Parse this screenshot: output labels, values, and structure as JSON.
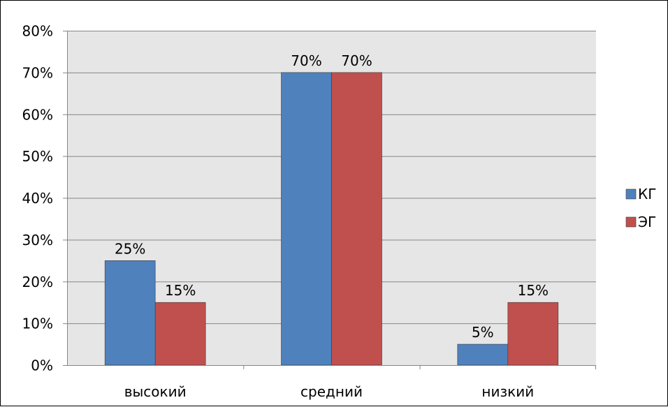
{
  "chart_data": {
    "type": "bar",
    "title": "",
    "xlabel": "",
    "ylabel": "",
    "categories": [
      "высокий",
      "средний",
      "низкий"
    ],
    "series": [
      {
        "name": "КГ",
        "values": [
          25,
          70,
          5
        ],
        "color": "#4F81BD"
      },
      {
        "name": "ЭГ",
        "values": [
          15,
          70,
          15
        ],
        "color": "#C0504D"
      }
    ],
    "ylim": [
      0,
      80
    ],
    "yticks": [
      0,
      10,
      20,
      30,
      40,
      50,
      60,
      70,
      80
    ],
    "y_tick_format": "percent",
    "data_labels": true,
    "grid": true,
    "legend_position": "right",
    "plot_background": "#E6E6E6",
    "gridline_color": "#868686"
  }
}
